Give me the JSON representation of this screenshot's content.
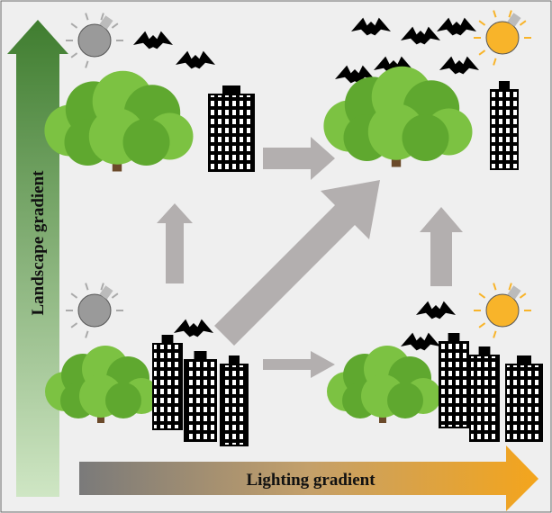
{
  "axes": {
    "vertical": "Landscape gradient",
    "horizontal": "Lighting gradient"
  }
}
